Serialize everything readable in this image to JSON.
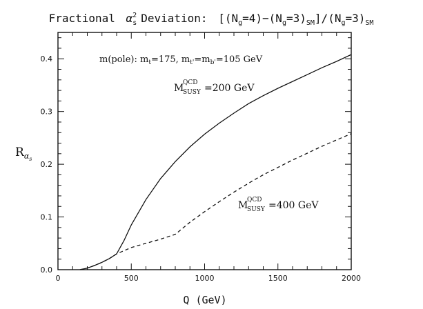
{
  "chart_data": {
    "type": "line",
    "title_parts": {
      "lead": "Fractional",
      "alpha": "α",
      "alpha_sup": "2",
      "alpha_sub": "s",
      "dev": "Deviation:",
      "expr_open": "[(N",
      "g1": "g",
      "eq4": "=4)−(N",
      "g2": "g",
      "eq3": "=3)",
      "sm1": "SM",
      "slash": "]/(N",
      "g3": "g",
      "eq3b": "=3)",
      "sm2": "SM"
    },
    "xlabel": "Q (GeV)",
    "ylabel_main": "R",
    "ylabel_sub": "α",
    "ylabel_subsub": "s",
    "xlim": [
      0,
      2000
    ],
    "ylim": [
      0,
      0.45
    ],
    "xticks": [
      0,
      500,
      1000,
      1500,
      2000
    ],
    "yticks": [
      0.0,
      0.1,
      0.2,
      0.3,
      0.4
    ],
    "xtick_labels": [
      "0",
      "500",
      "1000",
      "1500",
      "2000"
    ],
    "ytick_labels": [
      "0.0",
      "0.1",
      "0.2",
      "0.3",
      "0.4"
    ],
    "grid": false,
    "annotations": {
      "pole_a": "m(pole): m",
      "pole_t": "t",
      "pole_b": "=175, m",
      "pole_tp": "t'",
      "pole_c": "=m",
      "pole_bp": "b'",
      "pole_d": "=105 GeV",
      "m200_M": "M",
      "m200_sup": "QCD",
      "m200_sub": "SUSY",
      "m200_val": "=200 GeV",
      "m400_M": "M",
      "m400_sup": "QCD",
      "m400_sub": "SUSY",
      "m400_val": "=400 GeV"
    },
    "series": [
      {
        "style": "solid",
        "x": [
          150,
          200,
          250,
          300,
          350,
          400,
          450,
          500,
          600,
          700,
          800,
          900,
          1000,
          1100,
          1200,
          1300,
          1400,
          1500,
          1600,
          1700,
          1800,
          1900,
          2000
        ],
        "y": [
          0.0,
          0.003,
          0.008,
          0.014,
          0.021,
          0.03,
          0.055,
          0.085,
          0.133,
          0.173,
          0.205,
          0.233,
          0.257,
          0.278,
          0.297,
          0.315,
          0.33,
          0.344,
          0.357,
          0.37,
          0.383,
          0.395,
          0.408
        ]
      },
      {
        "style": "dashed",
        "x": [
          150,
          200,
          250,
          300,
          350,
          400,
          450,
          500,
          600,
          700,
          800,
          900,
          1000,
          1100,
          1200,
          1300,
          1400,
          1500,
          1600,
          1700,
          1800,
          1900,
          2000
        ],
        "y": [
          0.0,
          0.003,
          0.008,
          0.014,
          0.021,
          0.03,
          0.036,
          0.042,
          0.05,
          0.058,
          0.067,
          0.09,
          0.11,
          0.129,
          0.147,
          0.164,
          0.18,
          0.194,
          0.208,
          0.221,
          0.234,
          0.246,
          0.258
        ]
      }
    ]
  }
}
